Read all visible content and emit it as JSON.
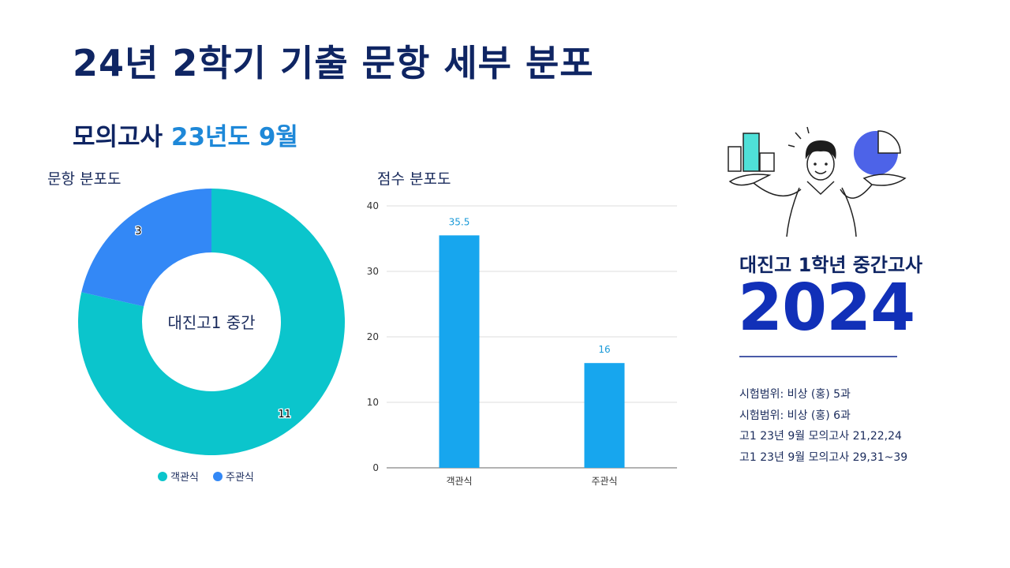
{
  "title": "24년 2학기 기출 문항 세부 분포",
  "subtitle": {
    "prefix": "모의고사 ",
    "highlight": "23년도 9월"
  },
  "chart_data": [
    {
      "type": "pie",
      "title": "문항 분포도",
      "center_label": "대진고1 중간",
      "categories": [
        "객관식",
        "주관식"
      ],
      "values": [
        11,
        3
      ],
      "colors": [
        "#0bc5cc",
        "#3388f6"
      ],
      "legend": "bottom"
    },
    {
      "type": "bar",
      "title": "점수 분포도",
      "categories": [
        "객관식",
        "주관식"
      ],
      "values": [
        35.5,
        16
      ],
      "ylim": [
        0,
        40
      ],
      "yticks": [
        0,
        10,
        20,
        30,
        40
      ],
      "grid": true,
      "color": "#17a6ee"
    }
  ],
  "right_panel": {
    "title": "대진고 1학년 중간고사",
    "year": "2024",
    "lines": [
      "시험범위: 비상 (홍) 5과",
      "시험범위: 비상 (홍) 6과",
      "고1 23년 9월 모의고사 21,22,24",
      "고1 23년 9월 모의고사 29,31~39"
    ]
  }
}
